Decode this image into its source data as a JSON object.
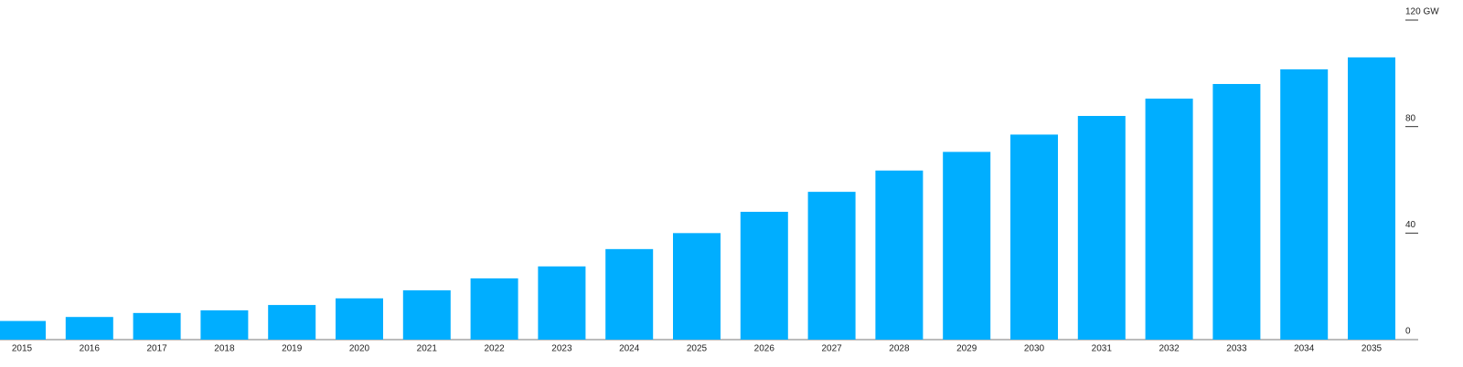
{
  "chart_data": {
    "type": "bar",
    "categories": [
      "2015",
      "2016",
      "2017",
      "2018",
      "2019",
      "2020",
      "2021",
      "2022",
      "2023",
      "2024",
      "2025",
      "2026",
      "2027",
      "2028",
      "2029",
      "2030",
      "2031",
      "2032",
      "2033",
      "2034",
      "2035"
    ],
    "values": [
      7,
      8.5,
      10,
      11,
      13,
      15.5,
      18.5,
      23,
      27.5,
      34,
      40,
      48,
      55.5,
      63.5,
      70.5,
      77,
      84,
      90.5,
      96,
      101.5,
      106
    ],
    "color": "#00aeff",
    "ylim": [
      0,
      120
    ],
    "yticks": [
      0,
      40,
      80,
      {
        "value": 120,
        "label": "120 GW"
      }
    ],
    "y_axis_side": "right"
  }
}
